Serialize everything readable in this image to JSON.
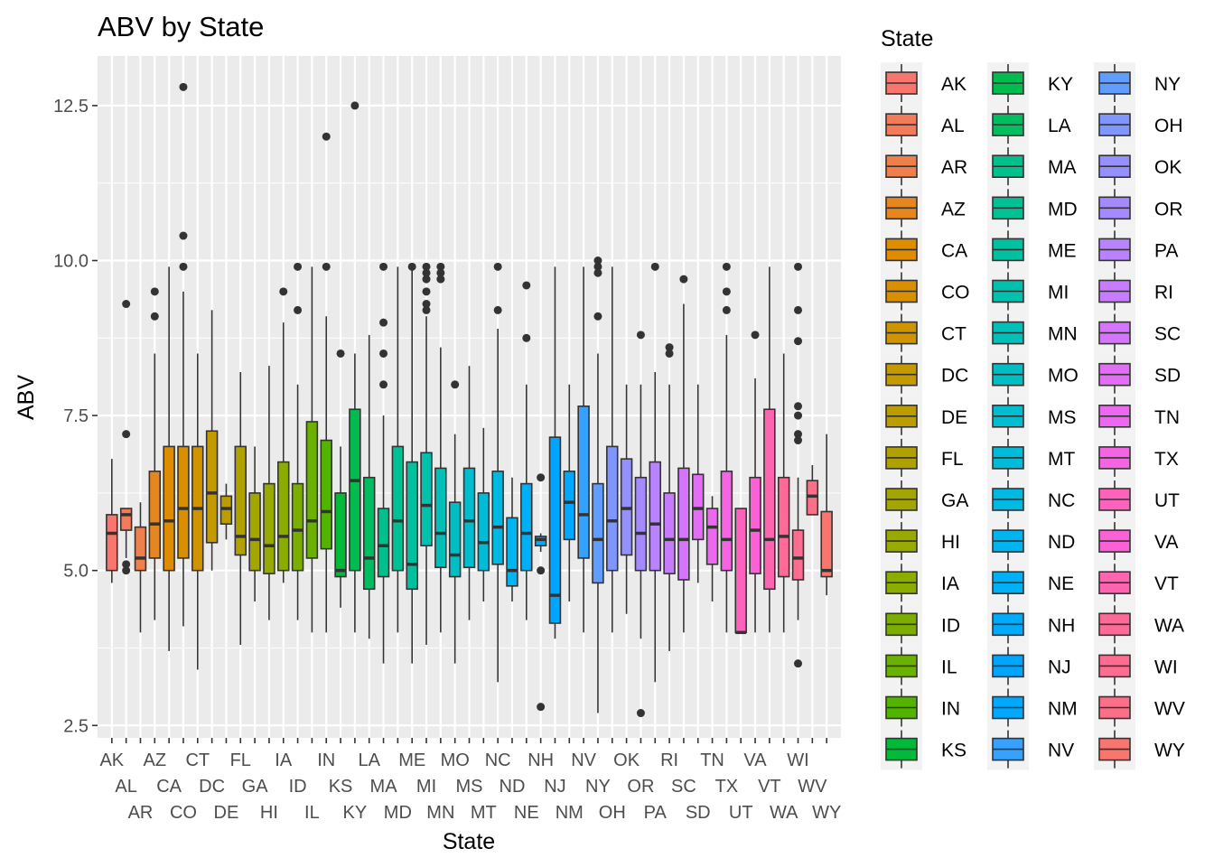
{
  "chart_data": {
    "type": "boxplot",
    "title": "ABV by State",
    "xlabel": "State",
    "ylabel": "ABV",
    "ylim": [
      2.3,
      13.3
    ],
    "yticks": [
      2.5,
      5.0,
      7.5,
      10.0,
      12.5
    ],
    "ytick_labels": [
      "2.5",
      "5.0",
      "7.5",
      "10.0",
      "12.5"
    ],
    "grid": true,
    "legend": {
      "title": "State",
      "position": "right",
      "columns": 3
    },
    "categories": [
      "AK",
      "AL",
      "AR",
      "AZ",
      "CA",
      "CO",
      "CT",
      "DC",
      "DE",
      "FL",
      "GA",
      "HI",
      "IA",
      "ID",
      "IL",
      "IN",
      "KS",
      "KY",
      "LA",
      "MA",
      "MD",
      "ME",
      "MI",
      "MN",
      "MO",
      "MS",
      "MT",
      "NC",
      "ND",
      "NE",
      "NH",
      "NJ",
      "NM",
      "NV",
      "NY",
      "OH",
      "OK",
      "OR",
      "PA",
      "RI",
      "SC",
      "SD",
      "TN",
      "TX",
      "UT",
      "VA",
      "VT",
      "WA",
      "WI",
      "WV",
      "WY"
    ],
    "colors": [
      "#F8766D",
      "#F47B5A",
      "#EF7F4B",
      "#E6861E",
      "#DF8C00",
      "#D89000",
      "#CF9400",
      "#C49A00",
      "#BB9D00",
      "#B0A100",
      "#A3A500",
      "#98A900",
      "#8BAD00",
      "#7CAE00",
      "#6BB100",
      "#53B400",
      "#00BA38",
      "#00BC4F",
      "#00BE60",
      "#00C08B",
      "#00C094",
      "#00C19F",
      "#00C1AB",
      "#00C0B8",
      "#00BEC4",
      "#00BDD0",
      "#00BCD8",
      "#00B9E3",
      "#00B4EF",
      "#00B0F6",
      "#00ABFD",
      "#00A5FF",
      "#00A9FF",
      "#35A2FF",
      "#619CFF",
      "#7F96FF",
      "#9590FF",
      "#A58AFF",
      "#B983FF",
      "#C77CFF",
      "#D575FE",
      "#E36EF6",
      "#EC69EF",
      "#F564E3",
      "#FF62BC",
      "#FB61D7",
      "#FF64B0",
      "#FF6A98",
      "#FF6C91",
      "#FD6E87",
      "#F8766D"
    ],
    "boxes": [
      {
        "state": "AK",
        "min": 4.8,
        "q1": 5.0,
        "median": 5.6,
        "q3": 5.9,
        "max": 6.8,
        "outliers": []
      },
      {
        "state": "AL",
        "min": 5.2,
        "q1": 5.65,
        "median": 5.9,
        "q3": 6.0,
        "max": 6.0,
        "outliers": [
          9.3,
          7.2,
          5.1,
          5.0
        ]
      },
      {
        "state": "AR",
        "min": 4.0,
        "q1": 5.0,
        "median": 5.2,
        "q3": 5.7,
        "max": 6.1,
        "outliers": []
      },
      {
        "state": "AZ",
        "min": 4.2,
        "q1": 5.2,
        "median": 5.75,
        "q3": 6.6,
        "max": 8.5,
        "outliers": [
          9.5,
          9.1
        ]
      },
      {
        "state": "CA",
        "min": 3.7,
        "q1": 5.0,
        "median": 5.8,
        "q3": 7.0,
        "max": 9.9,
        "outliers": []
      },
      {
        "state": "CO",
        "min": 4.1,
        "q1": 5.2,
        "median": 6.0,
        "q3": 7.0,
        "max": 9.5,
        "outliers": [
          12.8,
          10.4,
          9.9
        ]
      },
      {
        "state": "CT",
        "min": 3.4,
        "q1": 5.0,
        "median": 6.0,
        "q3": 7.0,
        "max": 8.5,
        "outliers": []
      },
      {
        "state": "DC",
        "min": 5.0,
        "q1": 5.45,
        "median": 6.25,
        "q3": 7.25,
        "max": 9.2,
        "outliers": []
      },
      {
        "state": "DE",
        "min": 5.5,
        "q1": 5.75,
        "median": 6.0,
        "q3": 6.2,
        "max": 6.4,
        "outliers": []
      },
      {
        "state": "FL",
        "min": 3.8,
        "q1": 5.25,
        "median": 5.55,
        "q3": 7.0,
        "max": 8.2,
        "outliers": []
      },
      {
        "state": "GA",
        "min": 4.5,
        "q1": 5.0,
        "median": 5.5,
        "q3": 6.25,
        "max": 7.0,
        "outliers": []
      },
      {
        "state": "HI",
        "min": 4.2,
        "q1": 4.95,
        "median": 5.4,
        "q3": 6.4,
        "max": 8.3,
        "outliers": []
      },
      {
        "state": "IA",
        "min": 4.8,
        "q1": 5.0,
        "median": 5.55,
        "q3": 6.75,
        "max": 9.0,
        "outliers": [
          9.5
        ]
      },
      {
        "state": "ID",
        "min": 4.2,
        "q1": 5.0,
        "median": 5.65,
        "q3": 6.4,
        "max": 8.0,
        "outliers": [
          9.9,
          9.2
        ]
      },
      {
        "state": "IL",
        "min": 4.0,
        "q1": 5.2,
        "median": 5.8,
        "q3": 7.4,
        "max": 9.9,
        "outliers": []
      },
      {
        "state": "IN",
        "min": 4.0,
        "q1": 5.35,
        "median": 5.95,
        "q3": 7.1,
        "max": 9.1,
        "outliers": [
          12.0,
          9.9
        ]
      },
      {
        "state": "KS",
        "min": 4.4,
        "q1": 4.9,
        "median": 5.0,
        "q3": 6.25,
        "max": 7.0,
        "outliers": [
          8.5
        ]
      },
      {
        "state": "KY",
        "min": 4.0,
        "q1": 5.0,
        "median": 6.45,
        "q3": 7.6,
        "max": 8.5,
        "outliers": [
          12.5
        ]
      },
      {
        "state": "LA",
        "min": 3.9,
        "q1": 4.7,
        "median": 5.2,
        "q3": 6.5,
        "max": 8.8,
        "outliers": []
      },
      {
        "state": "MA",
        "min": 3.5,
        "q1": 4.9,
        "median": 5.4,
        "q3": 6.0,
        "max": 7.5,
        "outliers": [
          9.9,
          9.0,
          8.5,
          8.0
        ]
      },
      {
        "state": "MD",
        "min": 4.0,
        "q1": 5.0,
        "median": 5.8,
        "q3": 7.0,
        "max": 9.9,
        "outliers": []
      },
      {
        "state": "ME",
        "min": 3.5,
        "q1": 4.7,
        "median": 5.1,
        "q3": 6.75,
        "max": 9.9,
        "outliers": [
          9.9
        ]
      },
      {
        "state": "MI",
        "min": 3.8,
        "q1": 5.4,
        "median": 6.05,
        "q3": 6.9,
        "max": 9.1,
        "outliers": [
          9.9,
          9.8,
          9.7,
          9.5,
          9.3,
          9.2
        ]
      },
      {
        "state": "MN",
        "min": 4.0,
        "q1": 5.05,
        "median": 5.6,
        "q3": 6.65,
        "max": 8.6,
        "outliers": [
          9.9,
          9.8,
          9.7
        ]
      },
      {
        "state": "MO",
        "min": 3.5,
        "q1": 4.9,
        "median": 5.25,
        "q3": 6.1,
        "max": 7.2,
        "outliers": [
          8.0
        ]
      },
      {
        "state": "MS",
        "min": 4.2,
        "q1": 5.05,
        "median": 5.8,
        "q3": 6.65,
        "max": 8.3,
        "outliers": []
      },
      {
        "state": "MT",
        "min": 4.5,
        "q1": 5.0,
        "median": 5.45,
        "q3": 6.25,
        "max": 7.3,
        "outliers": []
      },
      {
        "state": "NC",
        "min": 3.2,
        "q1": 5.1,
        "median": 5.7,
        "q3": 6.6,
        "max": 8.9,
        "outliers": [
          9.9,
          9.2
        ]
      },
      {
        "state": "ND",
        "min": 4.5,
        "q1": 4.75,
        "median": 5.0,
        "q3": 5.85,
        "max": 6.5,
        "outliers": []
      },
      {
        "state": "NE",
        "min": 4.2,
        "q1": 5.0,
        "median": 5.6,
        "q3": 6.4,
        "max": 8.0,
        "outliers": [
          9.6,
          8.75
        ]
      },
      {
        "state": "NH",
        "min": 5.3,
        "q1": 5.4,
        "median": 5.5,
        "q3": 5.55,
        "max": 5.6,
        "outliers": [
          6.5,
          5.0,
          2.8
        ]
      },
      {
        "state": "NJ",
        "min": 3.9,
        "q1": 4.15,
        "median": 4.6,
        "q3": 7.15,
        "max": 9.9,
        "outliers": []
      },
      {
        "state": "NM",
        "min": 4.5,
        "q1": 5.5,
        "median": 6.1,
        "q3": 6.6,
        "max": 8.0,
        "outliers": []
      },
      {
        "state": "NV",
        "min": 4.0,
        "q1": 5.2,
        "median": 5.9,
        "q3": 7.65,
        "max": 9.9,
        "outliers": []
      },
      {
        "state": "NY",
        "min": 2.7,
        "q1": 4.8,
        "median": 5.5,
        "q3": 6.4,
        "max": 8.5,
        "outliers": [
          10.0,
          9.9,
          9.8,
          9.1
        ]
      },
      {
        "state": "OH",
        "min": 4.0,
        "q1": 5.0,
        "median": 5.8,
        "q3": 7.0,
        "max": 9.9,
        "outliers": []
      },
      {
        "state": "OK",
        "min": 4.3,
        "q1": 5.25,
        "median": 6.0,
        "q3": 6.8,
        "max": 8.0,
        "outliers": []
      },
      {
        "state": "OR",
        "min": 3.9,
        "q1": 5.0,
        "median": 5.6,
        "q3": 6.5,
        "max": 8.0,
        "outliers": [
          8.8,
          2.7
        ]
      },
      {
        "state": "PA",
        "min": 3.2,
        "q1": 5.0,
        "median": 5.75,
        "q3": 6.75,
        "max": 8.2,
        "outliers": [
          9.9
        ]
      },
      {
        "state": "RI",
        "min": 3.7,
        "q1": 4.95,
        "median": 5.5,
        "q3": 6.25,
        "max": 8.0,
        "outliers": [
          8.6,
          8.5
        ]
      },
      {
        "state": "SC",
        "min": 4.0,
        "q1": 4.85,
        "median": 5.5,
        "q3": 6.65,
        "max": 9.3,
        "outliers": [
          9.7
        ]
      },
      {
        "state": "SD",
        "min": 4.8,
        "q1": 5.5,
        "median": 6.0,
        "q3": 6.55,
        "max": 8.0,
        "outliers": []
      },
      {
        "state": "TN",
        "min": 4.5,
        "q1": 5.1,
        "median": 5.7,
        "q3": 6.0,
        "max": 6.2,
        "outliers": []
      },
      {
        "state": "TX",
        "min": 4.0,
        "q1": 5.0,
        "median": 5.5,
        "q3": 6.6,
        "max": 8.8,
        "outliers": [
          9.9,
          9.5,
          9.2
        ]
      },
      {
        "state": "UT",
        "min": 4.0,
        "q1": 4.0,
        "median": 4.0,
        "q3": 6.0,
        "max": 6.0,
        "outliers": []
      },
      {
        "state": "VA",
        "min": 4.0,
        "q1": 4.95,
        "median": 5.65,
        "q3": 6.5,
        "max": 8.1,
        "outliers": [
          8.8
        ]
      },
      {
        "state": "VT",
        "min": 4.0,
        "q1": 4.7,
        "median": 5.5,
        "q3": 7.6,
        "max": 9.9,
        "outliers": []
      },
      {
        "state": "WA",
        "min": 4.0,
        "q1": 4.9,
        "median": 5.55,
        "q3": 6.5,
        "max": 8.5,
        "outliers": []
      },
      {
        "state": "WI",
        "min": 4.2,
        "q1": 4.85,
        "median": 5.2,
        "q3": 5.65,
        "max": 6.5,
        "outliers": [
          9.9,
          9.2,
          8.7,
          7.65,
          7.5,
          7.2,
          7.1,
          3.5
        ]
      },
      {
        "state": "WV",
        "min": 5.9,
        "q1": 5.9,
        "median": 6.2,
        "q3": 6.45,
        "max": 6.7,
        "outliers": []
      },
      {
        "state": "WY",
        "min": 4.6,
        "q1": 4.9,
        "median": 5.0,
        "q3": 5.95,
        "max": 7.2,
        "outliers": []
      }
    ]
  }
}
